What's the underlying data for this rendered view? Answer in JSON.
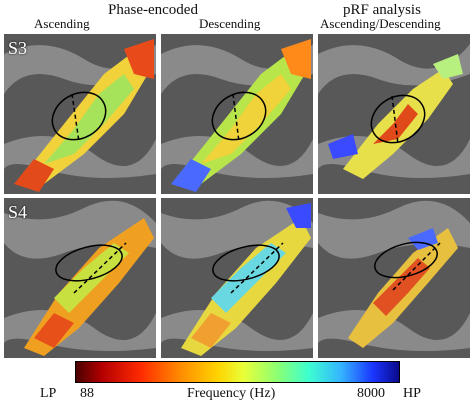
{
  "headers": {
    "phase_encoded": "Phase-encoded",
    "ascending": "Ascending",
    "descending": "Descending",
    "prf": "pRF analysis",
    "asc_desc": "Ascending/Descending"
  },
  "rows": [
    {
      "label": "S3"
    },
    {
      "label": "S4"
    }
  ],
  "colorbar": {
    "left_end": "LP",
    "low_value": "88",
    "title": "Frequency (Hz)",
    "high_value": "8000",
    "right_end": "HP"
  }
}
